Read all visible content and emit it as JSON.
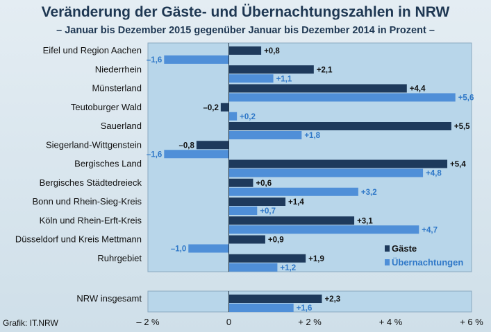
{
  "title": "Veränderung der Gäste- und Übernachtungszahlen in NRW",
  "subtitle": "– Januar bis Dezember 2015 gegenüber Januar bis Dezember 2014 in Prozent –",
  "source": "Grafik: IT.NRW",
  "colors": {
    "gaeste": "#1e3a5c",
    "uebernachtungen": "#4f8fd8",
    "plot_bg": "#b8d6ea",
    "uebernachtungen_text": "#2f78c8"
  },
  "chart_data": {
    "type": "bar",
    "orientation": "horizontal",
    "categories": [
      "Eifel und Region Aachen",
      "Niederrhein",
      "Münsterland",
      "Teutoburger Wald",
      "Sauerland",
      "Siegerland-Wittgenstein",
      "Bergisches Land",
      "Bergisches Städtedreieck",
      "Bonn und Rhein-Sieg-Kreis",
      "Köln und Rhein-Erft-Kreis",
      "Düsseldorf und Kreis Mettmann",
      "Ruhrgebiet"
    ],
    "series": [
      {
        "name": "Gäste",
        "values": [
          0.8,
          2.1,
          4.4,
          -0.2,
          5.5,
          -0.8,
          5.4,
          0.6,
          1.4,
          3.1,
          0.9,
          1.9
        ],
        "labels": [
          "+0,8",
          "+2,1",
          "+4,4",
          "–0,2",
          "+5,5",
          "–0,8",
          "+5,4",
          "+0,6",
          "+1,4",
          "+3,1",
          "+0,9",
          "+1,9"
        ]
      },
      {
        "name": "Übernachtungen",
        "values": [
          -1.6,
          1.1,
          5.6,
          0.2,
          1.8,
          -1.6,
          4.8,
          3.2,
          0.7,
          4.7,
          -1.0,
          1.2
        ],
        "labels": [
          "–1,6",
          "+1,1",
          "+5,6",
          "+0,2",
          "+1,8",
          "–1,6",
          "+4,8",
          "+3,2",
          "+0,7",
          "+4,7",
          "–1,0",
          "+1,2"
        ]
      }
    ],
    "total": {
      "category": "NRW insgesamt",
      "values": [
        2.3,
        1.6
      ],
      "labels": [
        "+2,3",
        "+1,6"
      ]
    },
    "xlim": [
      -2,
      6
    ],
    "xticks": [
      -2,
      0,
      2,
      4,
      6
    ],
    "xtick_labels": [
      "– 2 %",
      "0",
      "+ 2 %",
      "+ 4 %",
      "+ 6 %"
    ],
    "legend_position": "lower-right"
  }
}
